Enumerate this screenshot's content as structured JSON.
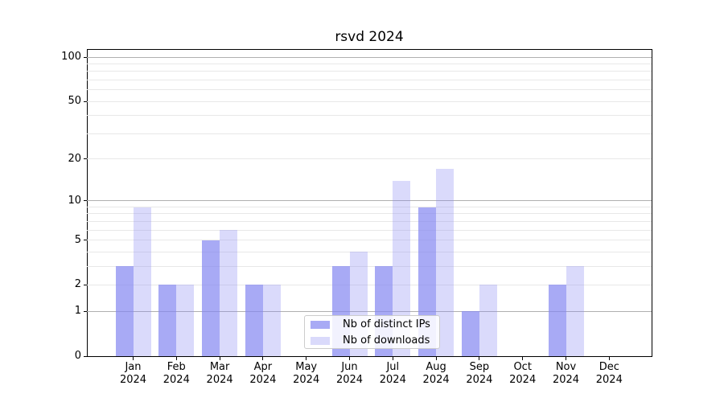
{
  "figure": {
    "title": "rsvd 2024",
    "background": "#ffffff"
  },
  "legend": {
    "position": "lower center",
    "items": [
      {
        "label": "Nb of distinct IPs",
        "color": "rgba(131,134,241,0.7)"
      },
      {
        "label": "Nb of downloads",
        "color": "rgba(131,134,241,0.3)"
      }
    ]
  },
  "chart_data": {
    "type": "bar",
    "title": "rsvd 2024",
    "categories": [
      "Jan 2024",
      "Feb 2024",
      "Mar 2024",
      "Apr 2024",
      "May 2024",
      "Jun 2024",
      "Jul 2024",
      "Aug 2024",
      "Sep 2024",
      "Oct 2024",
      "Nov 2024",
      "Dec 2024"
    ],
    "x_tick_month": [
      "Jan",
      "Feb",
      "Mar",
      "Apr",
      "May",
      "Jun",
      "Jul",
      "Aug",
      "Sep",
      "Oct",
      "Nov",
      "Dec"
    ],
    "x_tick_year": "2024",
    "series": [
      {
        "name": "Nb of distinct IPs",
        "color": "rgba(131,134,241,0.7)",
        "values": [
          3,
          2,
          5,
          2,
          0,
          3,
          3,
          9,
          1,
          0,
          2,
          0
        ]
      },
      {
        "name": "Nb of downloads",
        "color": "rgba(131,134,241,0.3)",
        "values": [
          9,
          2,
          6,
          2,
          0,
          4,
          14,
          17,
          2,
          0,
          3,
          0
        ]
      }
    ],
    "xlabel": "",
    "ylabel": "",
    "grid": true,
    "y_axis": {
      "scale": "log10(1+value)",
      "tick_values": [
        0,
        1,
        2,
        5,
        10,
        20,
        50,
        100
      ],
      "major_gridlines": [
        1,
        10,
        100
      ],
      "minor_gridlines": [
        2,
        3,
        4,
        5,
        6,
        7,
        8,
        9,
        20,
        30,
        40,
        50,
        60,
        70,
        80,
        90
      ],
      "range_top_value": 110
    }
  },
  "colors": {
    "bar_base": "#8386f1",
    "major_grid": "#b0b0b0",
    "minor_grid": "#e8e8e8",
    "spine": "#000000",
    "text": "#000000",
    "legend_border": "#cccccc"
  }
}
